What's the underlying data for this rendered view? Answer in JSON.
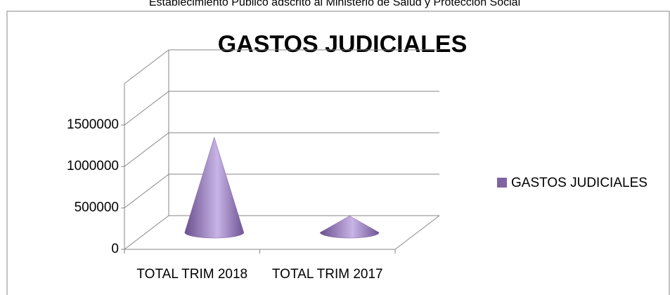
{
  "header": "Establecimiento Público adscrito al Ministerio de Salud y Protección Social",
  "chart_data": {
    "type": "cone",
    "title": "GASTOS JUDICIALES",
    "categories": [
      "TOTAL TRIM 2018",
      "TOTAL TRIM 2017"
    ],
    "series": [
      {
        "name": "GASTOS JUDICIALES",
        "color": "#8064a2",
        "values": [
          1150000,
          200000
        ]
      }
    ],
    "ylim": [
      0,
      2000000
    ],
    "yticks": [
      0,
      500000,
      1000000,
      1500000
    ],
    "grid": true,
    "legend": "right"
  }
}
